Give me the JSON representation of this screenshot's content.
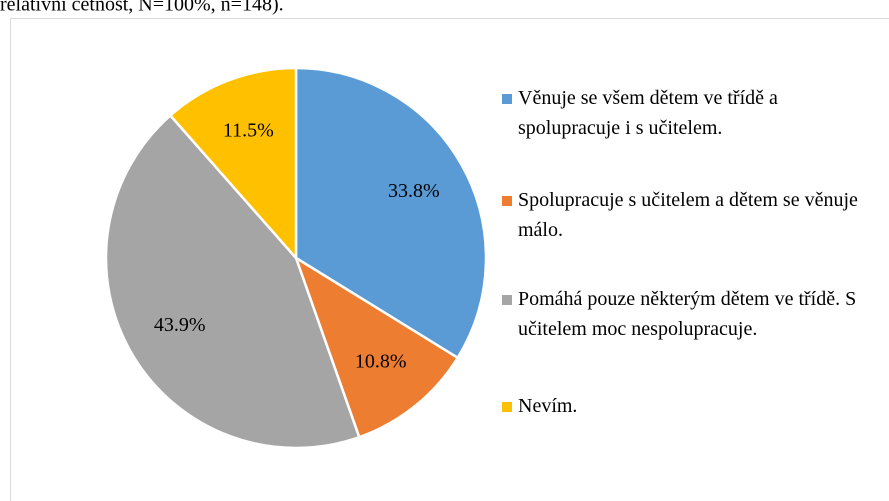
{
  "caption": "relativní četnost, N=100%, n=148).",
  "chart_data": {
    "type": "pie",
    "categories": [
      "Věnuje se všem dětem ve třídě a spolupracuje i s učitelem.",
      "Spolupracuje s učitelem a dětem se věnuje málo.",
      "Pomáhá pouze některým dětem ve třídě. S učitelem moc nespolupracuje.",
      "Nevím."
    ],
    "values": [
      33.8,
      10.8,
      43.9,
      11.5
    ],
    "value_labels": [
      "33.8%",
      "10.8%",
      "43.9%",
      "11.5%"
    ],
    "colors": [
      "#5b9bd5",
      "#ed7d31",
      "#a5a5a5",
      "#ffc000"
    ],
    "legend": "right"
  }
}
